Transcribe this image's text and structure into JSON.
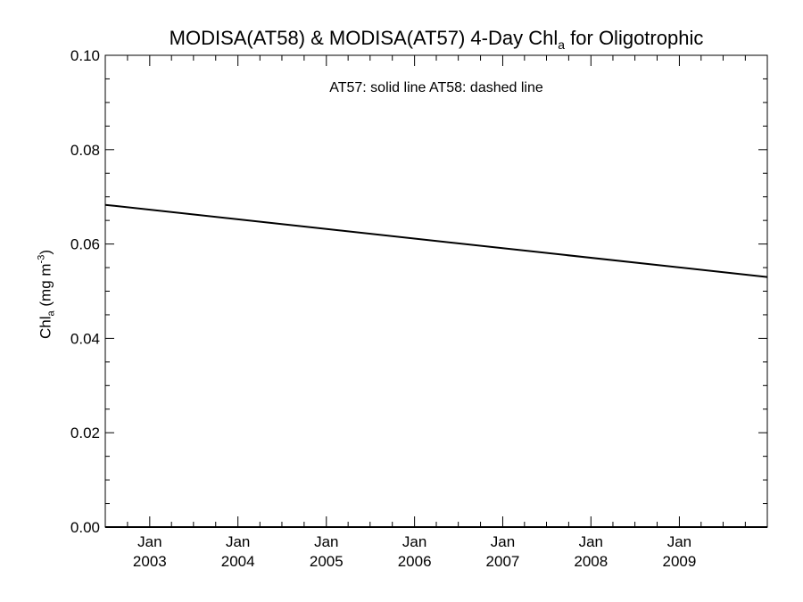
{
  "title": {
    "main": "MODISA(AT58) & MODISA(AT57) 4-Day Chl",
    "sub": "a",
    "tail": " for Oligotrophic"
  },
  "ylabel": {
    "main": "Chl",
    "sub": "a",
    "middle": " (mg m",
    "sup": "-3",
    "tail": ")"
  },
  "legend_text": "AT57: solid line   AT58: dashed line",
  "chart_data": {
    "type": "line",
    "title": "MODISA(AT58) & MODISA(AT57) 4-Day Chla for Oligotrophic",
    "ylabel": "Chla (mg m-3)",
    "xlabel": "",
    "xlim": [
      "2002-07-01",
      "2009-12-31"
    ],
    "ylim": [
      0.0,
      0.1
    ],
    "yticks": [
      0.0,
      0.02,
      0.04,
      0.06,
      0.08,
      0.1
    ],
    "ytick_labels": [
      "0.00",
      "0.02",
      "0.04",
      "0.06",
      "0.08",
      "0.10"
    ],
    "xticks": [
      "2003-01-01",
      "2004-01-01",
      "2005-01-01",
      "2006-01-01",
      "2007-01-01",
      "2008-01-01",
      "2009-01-01"
    ],
    "xtick_labels": [
      [
        "Jan",
        "2003"
      ],
      [
        "Jan",
        "2004"
      ],
      [
        "Jan",
        "2005"
      ],
      [
        "Jan",
        "2006"
      ],
      [
        "Jan",
        "2007"
      ],
      [
        "Jan",
        "2008"
      ],
      [
        "Jan",
        "2009"
      ]
    ],
    "grid": false,
    "series": [
      {
        "name": "AT57",
        "style": "solid",
        "color": "#000000",
        "x": [
          "2002-07-01",
          "2009-12-31"
        ],
        "y": [
          0.0683,
          0.053
        ]
      }
    ]
  }
}
